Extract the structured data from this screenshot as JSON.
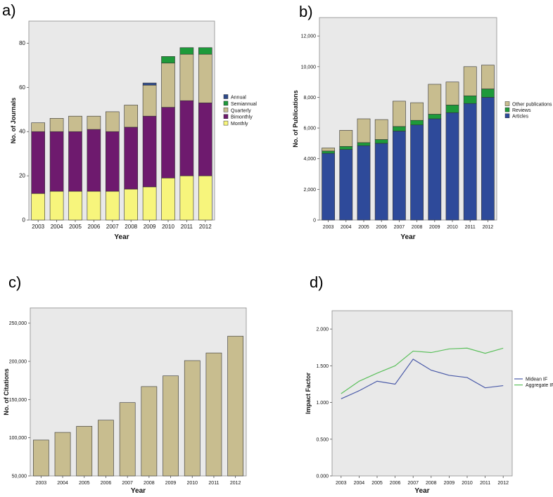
{
  "chart_data": [
    {
      "panel": "a)",
      "type": "bar",
      "stacked": true,
      "categories": [
        "2003",
        "2004",
        "2005",
        "2006",
        "2007",
        "2008",
        "2009",
        "2010",
        "2011",
        "2012"
      ],
      "xlabel": "Year",
      "ylabel": "No. of Journals",
      "ylim": [
        0,
        90
      ],
      "yticks": [
        0,
        20,
        40,
        60,
        80
      ],
      "ytick_labels": [
        "0",
        "20",
        "40",
        "60",
        "80"
      ],
      "legend_position": "right",
      "series": [
        {
          "name": "Monthly",
          "color": "#f7f57c",
          "values": [
            12,
            13,
            13,
            13,
            13,
            14,
            15,
            19,
            20,
            20
          ]
        },
        {
          "name": "Bimonthly",
          "color": "#6e1a6e",
          "values": [
            28,
            27,
            27,
            28,
            27,
            28,
            32,
            32,
            34,
            33
          ]
        },
        {
          "name": "Quarterly",
          "color": "#c8bd8f",
          "values": [
            4,
            6,
            7,
            6,
            9,
            10,
            14,
            20,
            21,
            22
          ]
        },
        {
          "name": "Semiannual",
          "color": "#1e9a3a",
          "values": [
            0,
            0,
            0,
            0,
            0,
            0,
            0,
            3,
            3,
            3
          ]
        },
        {
          "name": "Annual",
          "color": "#2e4a8a",
          "values": [
            0,
            0,
            0,
            0,
            0,
            0,
            1,
            0,
            0,
            0
          ]
        }
      ],
      "legend_order": [
        "Annual",
        "Semiannual",
        "Quarterly",
        "Bimonthly",
        "Monthly"
      ]
    },
    {
      "panel": "b)",
      "type": "bar",
      "stacked": true,
      "categories": [
        "2003",
        "2004",
        "2005",
        "2006",
        "2007",
        "2008",
        "2009",
        "2010",
        "2011",
        "2012"
      ],
      "xlabel": "Year",
      "ylabel": "No. of Publications",
      "ylim": [
        0,
        13200
      ],
      "yticks": [
        0,
        2000,
        4000,
        6000,
        8000,
        10000,
        12000
      ],
      "ytick_labels": [
        "0",
        "2,000",
        "4,000",
        "6,000",
        "8,000",
        "10,000",
        "12,000"
      ],
      "legend_position": "right",
      "series": [
        {
          "name": "Articles",
          "color": "#2e4a9a",
          "values": [
            4350,
            4600,
            4850,
            5000,
            5800,
            6200,
            6600,
            7000,
            7600,
            8000
          ]
        },
        {
          "name": "Reviews",
          "color": "#1e9a3a",
          "values": [
            150,
            200,
            200,
            250,
            300,
            300,
            300,
            500,
            500,
            550
          ]
        },
        {
          "name": "Other publications",
          "color": "#c8bd8f",
          "values": [
            200,
            1050,
            1550,
            1300,
            1650,
            1150,
            1950,
            1500,
            1900,
            1550
          ]
        }
      ],
      "legend_order": [
        "Other publications",
        "Reviews",
        "Articles"
      ]
    },
    {
      "panel": "c)",
      "type": "bar",
      "categories": [
        "2003",
        "2004",
        "2005",
        "2006",
        "2007",
        "2008",
        "2009",
        "2010",
        "2011",
        "2012"
      ],
      "xlabel": "Year",
      "ylabel": "No. of Citations",
      "ylim": [
        50000,
        270000
      ],
      "yticks": [
        50000,
        100000,
        150000,
        200000,
        250000
      ],
      "ytick_labels": [
        "50,000",
        "100,000",
        "150,000",
        "200,000",
        "250,000"
      ],
      "color": "#c8bd8f",
      "values": [
        97000,
        107000,
        115000,
        123000,
        146000,
        167000,
        181000,
        201000,
        211000,
        233000
      ]
    },
    {
      "panel": "d)",
      "type": "line",
      "categories": [
        "2003",
        "2004",
        "2005",
        "2006",
        "2007",
        "2008",
        "2009",
        "2010",
        "2011",
        "2012"
      ],
      "xlabel": "Year",
      "ylabel": "Impact Factor",
      "ylim": [
        0,
        2.25
      ],
      "yticks": [
        0,
        0.5,
        1.0,
        1.5,
        2.0
      ],
      "ytick_labels": [
        "0.000",
        "0.500",
        "1.000",
        "1.500",
        "2.000"
      ],
      "legend_position": "right",
      "series": [
        {
          "name": "Midean IF",
          "color": "#4a5aa8",
          "values": [
            1.05,
            1.16,
            1.29,
            1.25,
            1.59,
            1.44,
            1.37,
            1.34,
            1.2,
            1.23
          ]
        },
        {
          "name": "Aggregate IF",
          "color": "#5cc05c",
          "values": [
            1.12,
            1.29,
            1.4,
            1.5,
            1.7,
            1.68,
            1.73,
            1.74,
            1.67,
            1.74
          ]
        }
      ]
    }
  ]
}
